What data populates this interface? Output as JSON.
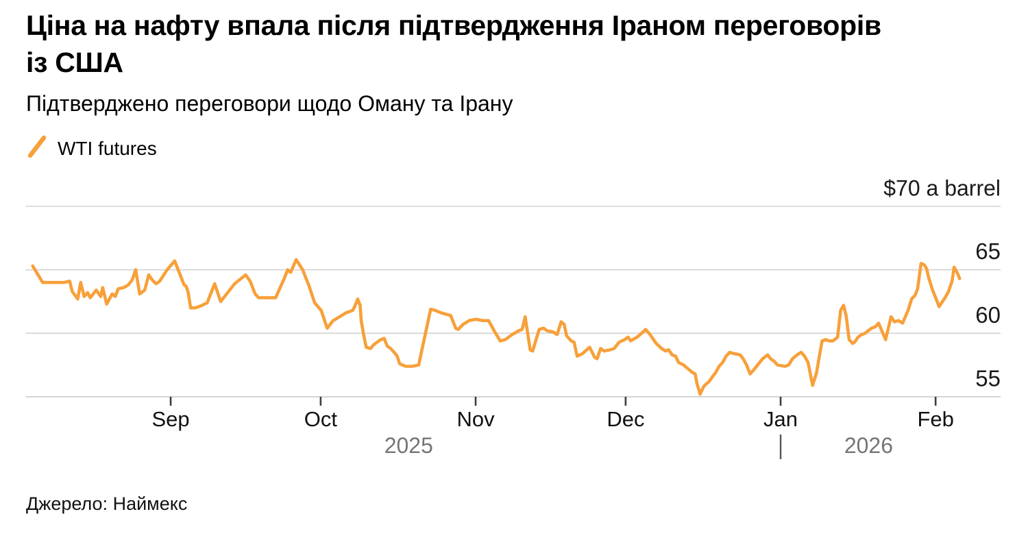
{
  "header": {
    "title": "Ціна на нафту впала після підтвердження Іраном переговорів із США",
    "title_line1": "Ціна на нафту впала після підтвердження Іраном переговорів",
    "title_line2": "із США",
    "subtitle": "Підтверджено переговори щодо Оману та Ірану"
  },
  "legend": {
    "series_label": "WTI futures"
  },
  "source": {
    "text": "Джерело: Наймекс"
  },
  "colors": {
    "series": "#F7A03A",
    "gridline": "#D2D2D2",
    "axis_baseline": "#CCCCCC",
    "tick": "#3D3D3D",
    "year_divider": "#555555"
  },
  "chart_data": {
    "type": "line",
    "title": "Ціна на нафту впала після підтвердження Іраном переговорів із США",
    "subtitle": "Підтверджено переговори щодо Оману та Ірану",
    "series_name": "WTI futures",
    "unit_label": "$70 a barrel",
    "grid": true,
    "legend_position": "top-left",
    "ylim": [
      54,
      71
    ],
    "y_ticks": [
      {
        "value": 70,
        "label": "$70 a barrel",
        "is_unit_label": true
      },
      {
        "value": 65,
        "label": "65",
        "is_unit_label": false
      },
      {
        "value": 60,
        "label": "60",
        "is_unit_label": false
      },
      {
        "value": 55,
        "label": "55",
        "is_unit_label": false
      }
    ],
    "x_unit": "days since 2025-08-03",
    "x_domain": [
      0,
      195
    ],
    "x_ticks": [
      {
        "day": 29,
        "label": "Sep"
      },
      {
        "day": 59,
        "label": "Oct"
      },
      {
        "day": 90,
        "label": "Nov"
      },
      {
        "day": 120,
        "label": "Dec"
      },
      {
        "day": 151,
        "label": "Jan"
      },
      {
        "day": 182,
        "label": "Feb"
      }
    ],
    "year_labels": [
      {
        "day": 76.6,
        "label": "2025"
      },
      {
        "day": 168.6,
        "label": "2026"
      }
    ],
    "year_divider_day": 151,
    "points": [
      [
        1.4,
        65.3
      ],
      [
        3.4,
        64.0
      ],
      [
        7.6,
        64.0
      ],
      [
        8.8,
        64.1
      ],
      [
        9.3,
        63.3
      ],
      [
        10.4,
        62.7
      ],
      [
        11.0,
        64.0
      ],
      [
        11.7,
        62.9
      ],
      [
        12.4,
        63.2
      ],
      [
        12.9,
        62.8
      ],
      [
        14.1,
        63.4
      ],
      [
        15.0,
        62.9
      ],
      [
        15.4,
        63.6
      ],
      [
        16.2,
        62.3
      ],
      [
        17.3,
        63.1
      ],
      [
        17.9,
        62.9
      ],
      [
        18.5,
        63.5
      ],
      [
        19.6,
        63.6
      ],
      [
        20.5,
        63.8
      ],
      [
        21.3,
        64.2
      ],
      [
        22.0,
        65.0
      ],
      [
        22.8,
        63.1
      ],
      [
        23.8,
        63.4
      ],
      [
        24.6,
        64.6
      ],
      [
        25.3,
        64.2
      ],
      [
        26.1,
        63.9
      ],
      [
        26.8,
        64.1
      ],
      [
        28.3,
        65.0
      ],
      [
        29.8,
        65.7
      ],
      [
        31.0,
        64.5
      ],
      [
        31.7,
        63.8
      ],
      [
        32.1,
        63.7
      ],
      [
        32.5,
        63.2
      ],
      [
        33.0,
        62.0
      ],
      [
        34.0,
        62.0
      ],
      [
        35.3,
        62.2
      ],
      [
        36.3,
        62.4
      ],
      [
        37.8,
        63.9
      ],
      [
        39.0,
        62.5
      ],
      [
        40.4,
        63.2
      ],
      [
        41.8,
        63.9
      ],
      [
        44.0,
        64.6
      ],
      [
        44.9,
        64.1
      ],
      [
        45.9,
        63.1
      ],
      [
        46.6,
        62.8
      ],
      [
        48.4,
        62.8
      ],
      [
        50.0,
        62.8
      ],
      [
        51.8,
        64.4
      ],
      [
        52.4,
        65.0
      ],
      [
        53.0,
        64.8
      ],
      [
        54.1,
        65.8
      ],
      [
        55.4,
        65.0
      ],
      [
        56.7,
        63.7
      ],
      [
        57.8,
        62.4
      ],
      [
        59.1,
        61.8
      ],
      [
        60.3,
        60.4
      ],
      [
        61.5,
        61.0
      ],
      [
        62.8,
        61.3
      ],
      [
        64.0,
        61.6
      ],
      [
        65.4,
        61.8
      ],
      [
        65.8,
        62.1
      ],
      [
        66.4,
        62.7
      ],
      [
        66.9,
        62.2
      ],
      [
        67.1,
        61.0
      ],
      [
        67.6,
        59.9
      ],
      [
        68.1,
        58.9
      ],
      [
        69.0,
        58.8
      ],
      [
        69.6,
        59.1
      ],
      [
        70.3,
        59.3
      ],
      [
        71.0,
        59.5
      ],
      [
        71.7,
        59.6
      ],
      [
        72.3,
        59.0
      ],
      [
        73.0,
        58.8
      ],
      [
        73.7,
        58.5
      ],
      [
        74.3,
        58.2
      ],
      [
        74.8,
        57.6
      ],
      [
        76.0,
        57.4
      ],
      [
        77.3,
        57.4
      ],
      [
        78.6,
        57.5
      ],
      [
        81.0,
        61.9
      ],
      [
        81.9,
        61.8
      ],
      [
        83.2,
        61.6
      ],
      [
        85.0,
        61.4
      ],
      [
        86.0,
        60.4
      ],
      [
        86.5,
        60.3
      ],
      [
        87.5,
        60.7
      ],
      [
        88.7,
        61.0
      ],
      [
        90.0,
        61.1
      ],
      [
        91.5,
        61.0
      ],
      [
        92.6,
        61.0
      ],
      [
        93.7,
        60.2
      ],
      [
        94.9,
        59.4
      ],
      [
        95.9,
        59.5
      ],
      [
        97.3,
        59.9
      ],
      [
        98.6,
        60.2
      ],
      [
        99.3,
        60.3
      ],
      [
        99.9,
        61.3
      ],
      [
        100.9,
        58.7
      ],
      [
        101.4,
        58.6
      ],
      [
        102.7,
        60.3
      ],
      [
        103.6,
        60.4
      ],
      [
        104.3,
        60.2
      ],
      [
        105.5,
        60.1
      ],
      [
        106.3,
        59.9
      ],
      [
        107.1,
        60.9
      ],
      [
        107.7,
        60.7
      ],
      [
        108.2,
        59.8
      ],
      [
        109.1,
        59.4
      ],
      [
        109.7,
        59.3
      ],
      [
        110.3,
        58.2
      ],
      [
        111.4,
        58.4
      ],
      [
        112.8,
        58.9
      ],
      [
        113.8,
        58.1
      ],
      [
        114.3,
        58.0
      ],
      [
        115.0,
        58.8
      ],
      [
        115.7,
        58.6
      ],
      [
        116.9,
        58.7
      ],
      [
        117.7,
        58.8
      ],
      [
        118.7,
        59.3
      ],
      [
        119.8,
        59.5
      ],
      [
        120.5,
        59.7
      ],
      [
        121.0,
        59.4
      ],
      [
        122.3,
        59.7
      ],
      [
        123.2,
        60.0
      ],
      [
        124.0,
        60.3
      ],
      [
        124.9,
        59.9
      ],
      [
        126.1,
        59.2
      ],
      [
        127.2,
        58.8
      ],
      [
        128.0,
        58.6
      ],
      [
        128.6,
        58.7
      ],
      [
        129.3,
        58.3
      ],
      [
        130.0,
        58.2
      ],
      [
        130.6,
        57.7
      ],
      [
        131.6,
        57.5
      ],
      [
        132.5,
        57.2
      ],
      [
        133.4,
        56.9
      ],
      [
        133.9,
        56.8
      ],
      [
        134.3,
        56.0
      ],
      [
        134.9,
        55.2
      ],
      [
        135.6,
        55.8
      ],
      [
        136.1,
        56.0
      ],
      [
        136.7,
        56.2
      ],
      [
        137.4,
        56.6
      ],
      [
        138.0,
        56.9
      ],
      [
        138.7,
        57.4
      ],
      [
        139.4,
        57.7
      ],
      [
        140.1,
        58.2
      ],
      [
        140.8,
        58.5
      ],
      [
        141.6,
        58.4
      ],
      [
        142.9,
        58.3
      ],
      [
        143.5,
        58.0
      ],
      [
        144.2,
        57.5
      ],
      [
        144.9,
        56.8
      ],
      [
        145.6,
        57.1
      ],
      [
        146.4,
        57.5
      ],
      [
        147.4,
        58.0
      ],
      [
        148.4,
        58.3
      ],
      [
        149.0,
        58.0
      ],
      [
        149.7,
        57.8
      ],
      [
        150.4,
        57.5
      ],
      [
        151.9,
        57.4
      ],
      [
        152.6,
        57.5
      ],
      [
        153.4,
        58.0
      ],
      [
        154.3,
        58.3
      ],
      [
        155.1,
        58.5
      ],
      [
        155.8,
        58.2
      ],
      [
        156.5,
        57.7
      ],
      [
        157.4,
        55.9
      ],
      [
        158.2,
        56.9
      ],
      [
        158.8,
        58.3
      ],
      [
        159.3,
        59.4
      ],
      [
        160.0,
        59.5
      ],
      [
        160.7,
        59.4
      ],
      [
        161.5,
        59.4
      ],
      [
        162.4,
        59.7
      ],
      [
        163.0,
        61.8
      ],
      [
        163.6,
        62.2
      ],
      [
        164.1,
        61.4
      ],
      [
        164.7,
        59.5
      ],
      [
        165.4,
        59.2
      ],
      [
        165.8,
        59.3
      ],
      [
        166.5,
        59.7
      ],
      [
        167.2,
        59.9
      ],
      [
        167.9,
        60.0
      ],
      [
        168.5,
        60.2
      ],
      [
        169.2,
        60.4
      ],
      [
        169.9,
        60.5
      ],
      [
        170.6,
        60.8
      ],
      [
        172.0,
        59.5
      ],
      [
        173.1,
        61.3
      ],
      [
        173.8,
        60.9
      ],
      [
        174.6,
        61.0
      ],
      [
        175.4,
        60.8
      ],
      [
        176.5,
        61.8
      ],
      [
        177.2,
        62.7
      ],
      [
        177.9,
        63.0
      ],
      [
        178.4,
        63.5
      ],
      [
        179.1,
        65.5
      ],
      [
        179.7,
        65.4
      ],
      [
        180.2,
        65.1
      ],
      [
        180.6,
        64.4
      ],
      [
        181.3,
        63.5
      ],
      [
        182.0,
        62.8
      ],
      [
        182.7,
        62.1
      ],
      [
        183.9,
        62.8
      ],
      [
        184.6,
        63.3
      ],
      [
        185.3,
        64.1
      ],
      [
        185.7,
        65.2
      ],
      [
        186.4,
        64.7
      ],
      [
        186.8,
        64.3
      ]
    ]
  }
}
